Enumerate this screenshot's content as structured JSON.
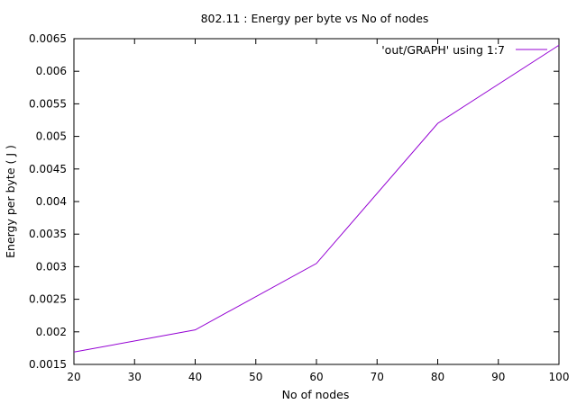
{
  "chart_data": {
    "type": "line",
    "title": "802.11 : Energy per byte vs No of nodes",
    "xlabel": "No of nodes",
    "ylabel": "Energy per byte ( J )",
    "xlim": [
      20,
      100
    ],
    "ylim": [
      0.0015,
      0.0065
    ],
    "xticks": [
      "20",
      "30",
      "40",
      "50",
      "60",
      "70",
      "80",
      "90",
      "100"
    ],
    "yticks": [
      "0.0015",
      "0.002",
      "0.0025",
      "0.003",
      "0.0035",
      "0.004",
      "0.0045",
      "0.005",
      "0.0055",
      "0.006",
      "0.0065"
    ],
    "grid": false,
    "legend_position": "top-right",
    "series": [
      {
        "name": "'out/GRAPH' using 1:7",
        "color": "#9400d3",
        "x": [
          20,
          40,
          60,
          80,
          100
        ],
        "y": [
          0.00169,
          0.00203,
          0.00305,
          0.0052,
          0.0064
        ]
      }
    ]
  }
}
